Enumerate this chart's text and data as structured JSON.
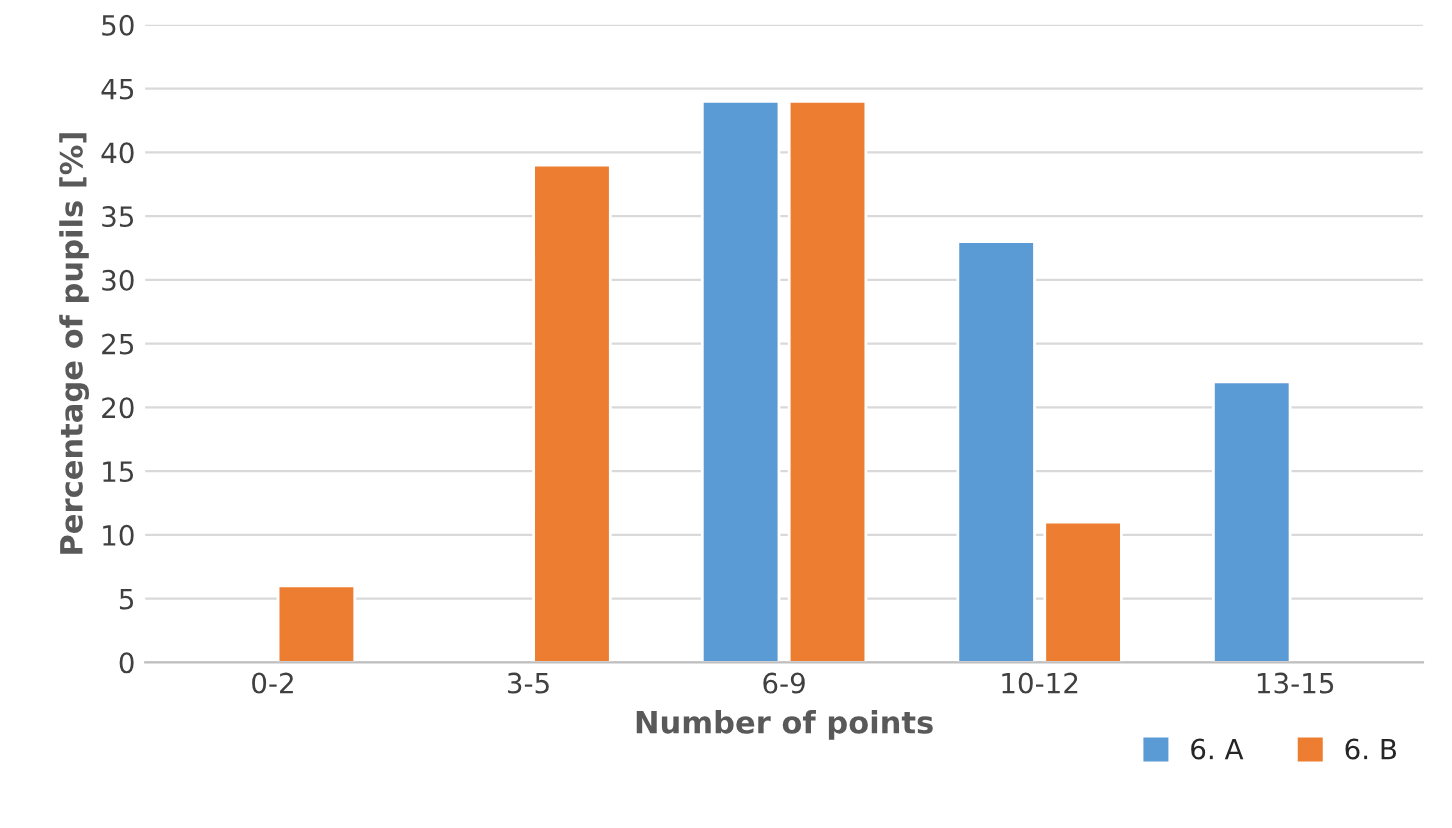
{
  "chart_data": {
    "type": "bar",
    "xlabel": "Number of points",
    "ylabel": "Percentage of pupils [%]",
    "categories": [
      "0-2",
      "3-5",
      "6-9",
      "10-12",
      "13-15"
    ],
    "series": [
      {
        "name": "6. A",
        "color": "#5b9bd5",
        "values": [
          null,
          null,
          44,
          33,
          22
        ]
      },
      {
        "name": "6. B",
        "color": "#ed7d31",
        "values": [
          6,
          39,
          44,
          11,
          null
        ]
      }
    ],
    "ylim": [
      0,
      50
    ],
    "yticks": [
      0,
      5,
      10,
      15,
      20,
      25,
      30,
      35,
      40,
      45,
      50
    ],
    "grid": "y",
    "legend": "bottom right"
  }
}
